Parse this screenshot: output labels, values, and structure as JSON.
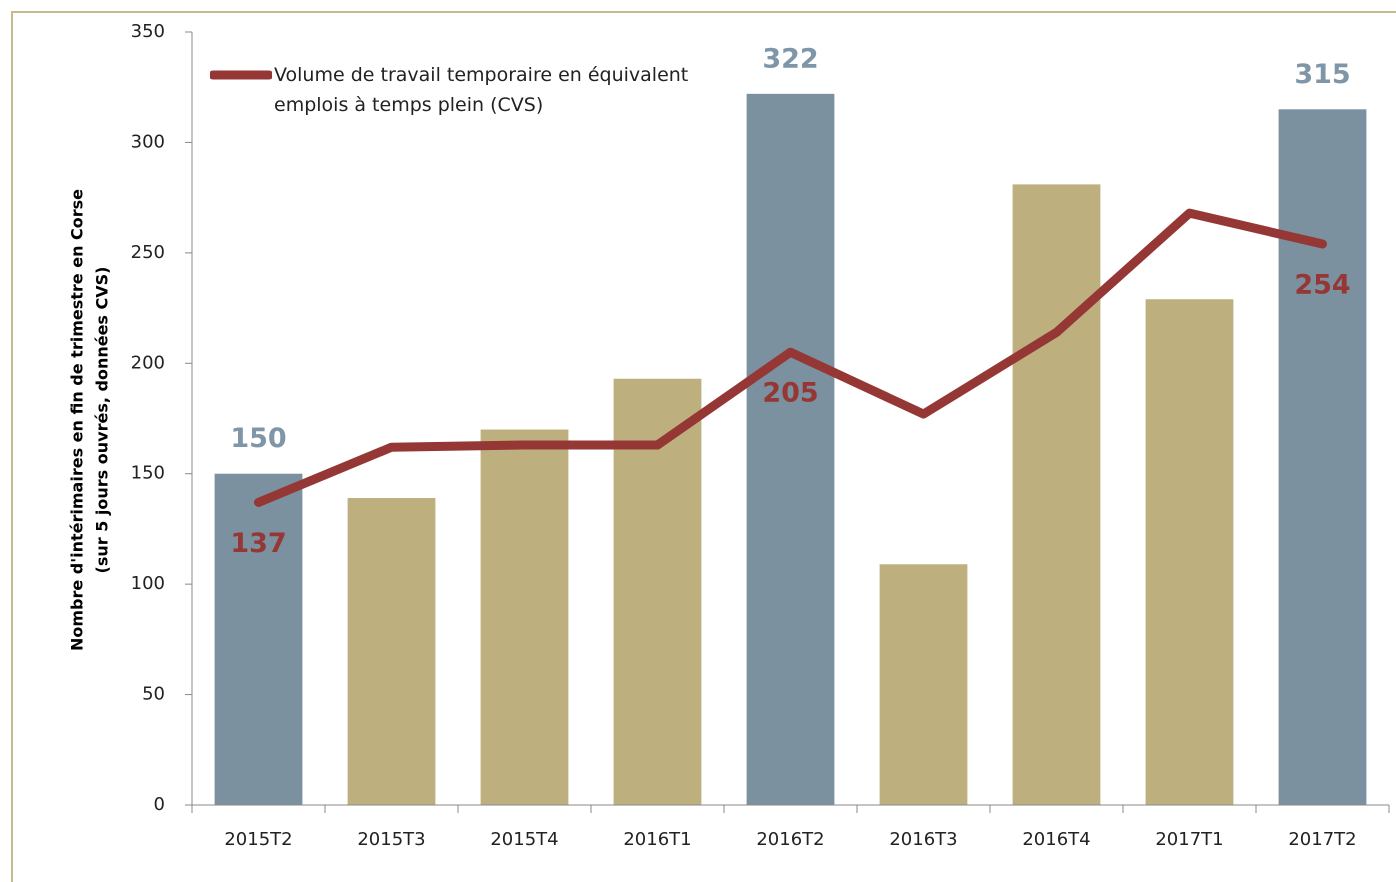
{
  "chart_data": {
    "type": "bar-line",
    "ylabel": [
      "Nombre d'intérimaires en fin de trimestre en Corse",
      "(sur 5 jours ouvrés, données CVS)"
    ],
    "categories": [
      "2015T2",
      "2015T3",
      "2015T4",
      "2016T1",
      "2016T2",
      "2016T3",
      "2016T4",
      "2017T1",
      "2017T2"
    ],
    "series": [
      {
        "type": "bar",
        "colors": [
          "#7b91a0",
          "#bdb07e",
          "#bdb07e",
          "#bdb07e",
          "#7b91a0",
          "#bdb07e",
          "#bdb07e",
          "#bdb07e",
          "#7b91a0"
        ],
        "label_color": "#7f96a8",
        "values": [
          150,
          139,
          170,
          193,
          322,
          109,
          281,
          229,
          315
        ],
        "value_labels": [
          "150",
          null,
          null,
          null,
          "322",
          null,
          null,
          null,
          "315"
        ]
      },
      {
        "type": "line",
        "name": "Volume de travail temporaire en équivalent emplois à temps plein (CVS)",
        "color": "#953735",
        "values": [
          137,
          162,
          163,
          163,
          205,
          177,
          214,
          268,
          254
        ],
        "value_labels": [
          "137",
          null,
          null,
          null,
          "205",
          null,
          null,
          null,
          "254"
        ]
      }
    ],
    "ylim": [
      0,
      350
    ],
    "yticks": [
      0,
      50,
      100,
      150,
      200,
      250,
      300,
      350
    ],
    "legend": "top-left"
  }
}
